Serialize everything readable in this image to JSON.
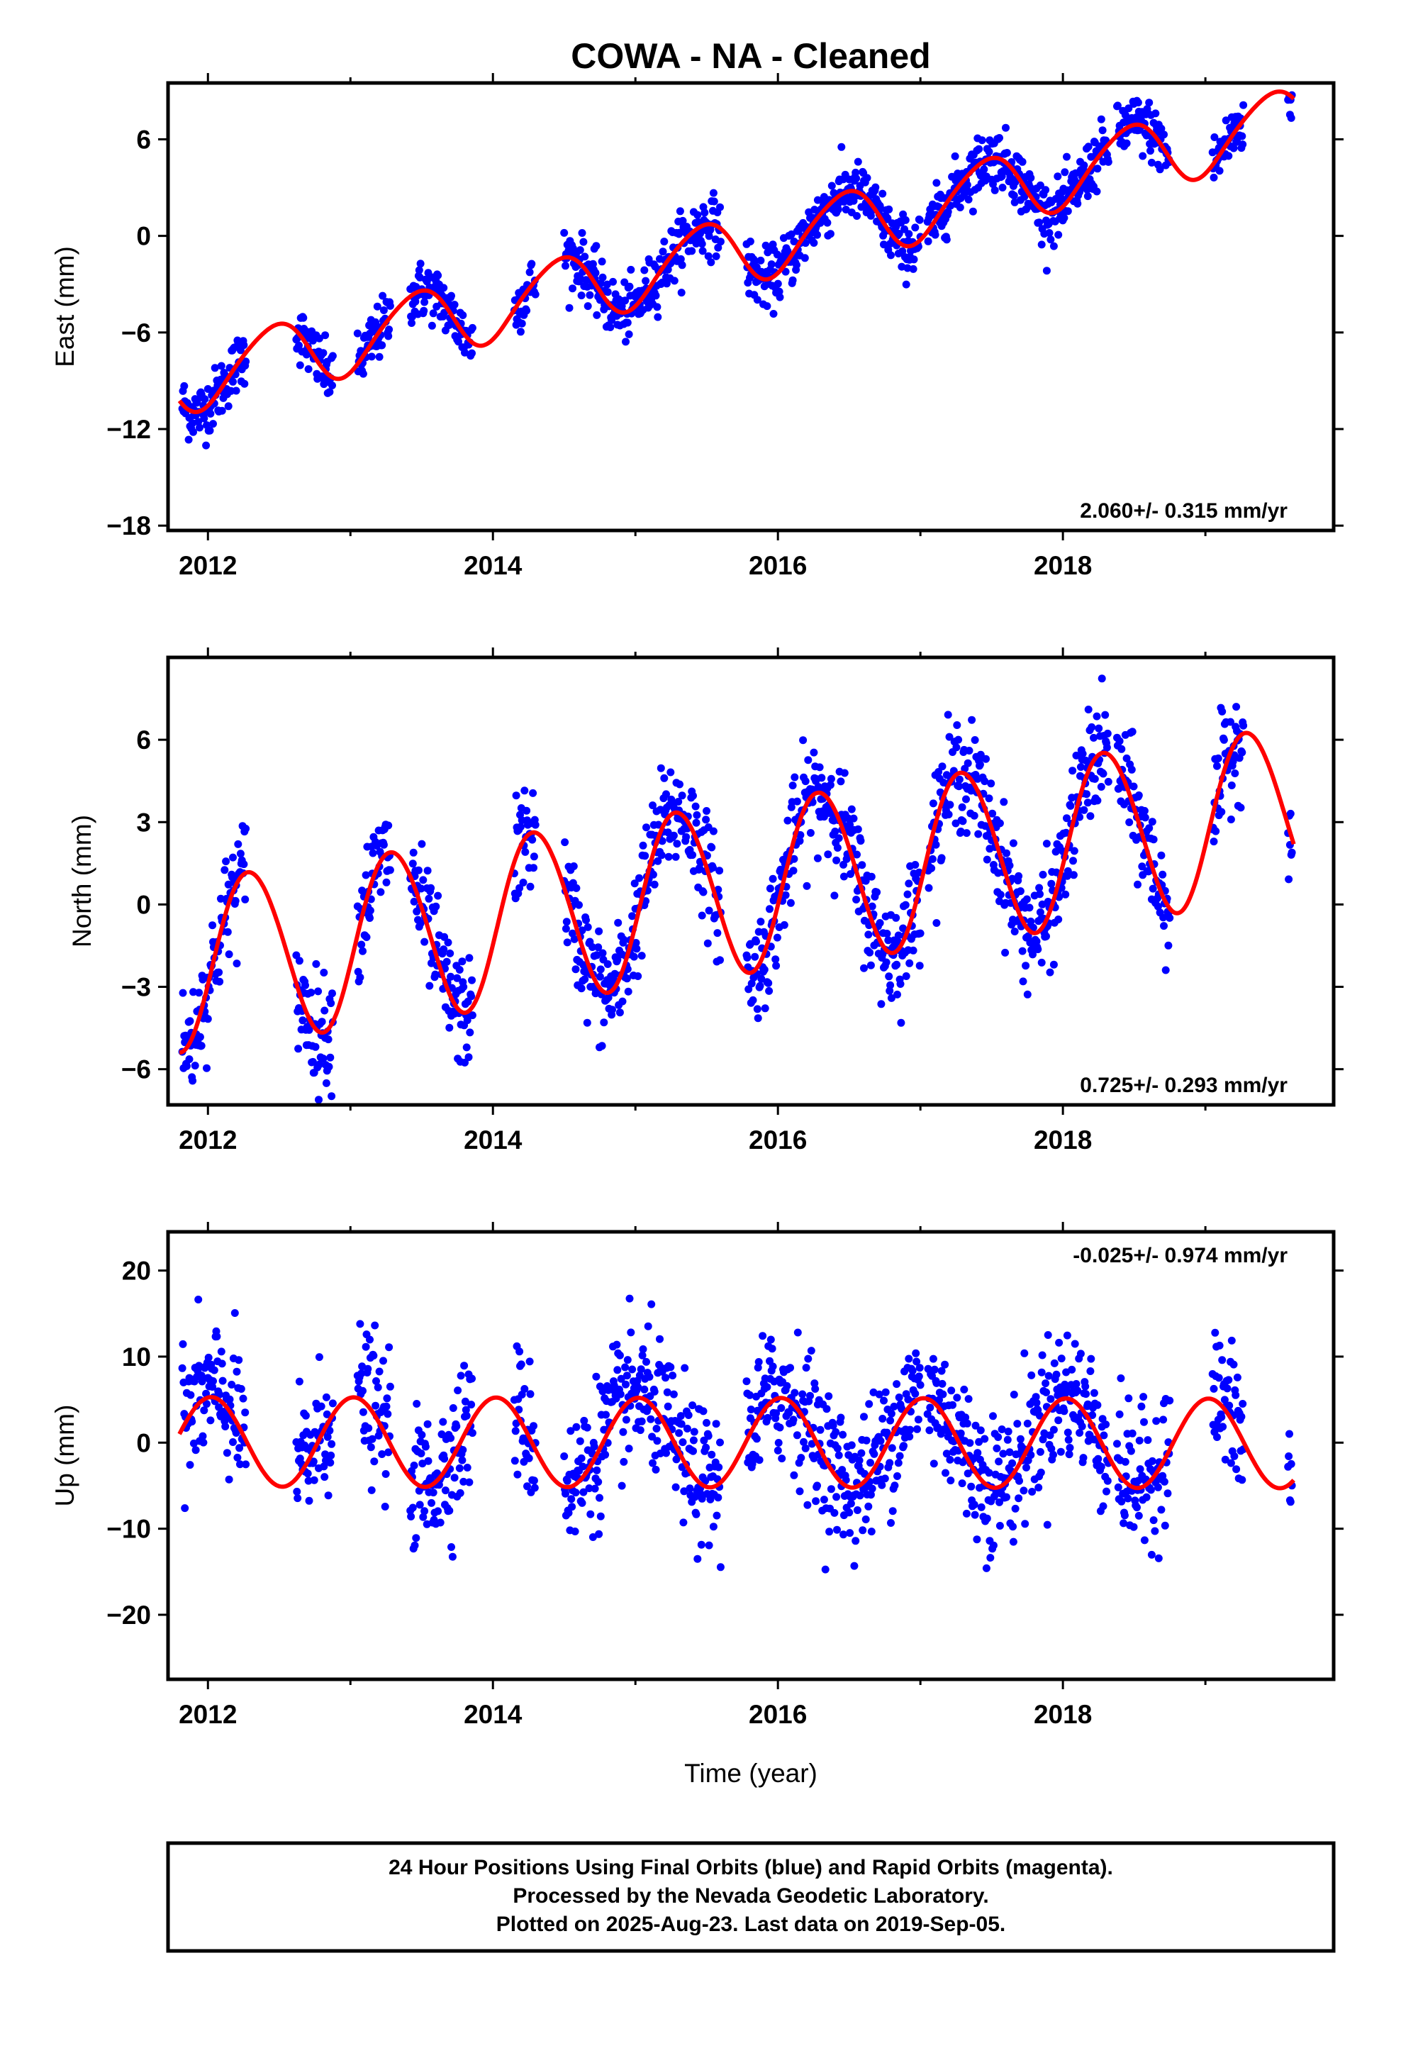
{
  "title": "COWA  - NA - Cleaned",
  "xlabel": "Time (year)",
  "footnote": [
    "24 Hour Positions Using Final Orbits (blue) and Rapid Orbits (magenta).",
    "Processed by the Nevada Geodetic Laboratory.",
    "Plotted on 2025-Aug-23. Last data on 2019-Sep-05."
  ],
  "colors": {
    "data": "#0000ff",
    "model": "#ff0000",
    "axes": "#000000"
  },
  "chart_data": [
    {
      "type": "scatter",
      "title": "",
      "xlabel": "",
      "ylabel": "East (mm)",
      "xlim": [
        2011.72,
        2019.9
      ],
      "ylim": [
        -18.3,
        9.5
      ],
      "xticks": [
        2012,
        2014,
        2016,
        2018
      ],
      "yticks": [
        -18,
        -12,
        -6,
        0,
        6
      ],
      "rate_label": "2.060+/- 0.315 mm/yr",
      "rate_position": "bottom-right",
      "model": {
        "rate": 2.06,
        "t0": 2015.7,
        "y0": -0.9,
        "amp_annual": 2.1,
        "phase_annual": -1.3,
        "amp_semi": 0.25,
        "phase_semi": 0.0
      },
      "data_segments": [
        [
          2011.82,
          2012.27
        ],
        [
          2012.62,
          2012.88
        ],
        [
          2013.05,
          2013.28
        ],
        [
          2013.42,
          2013.86
        ],
        [
          2014.15,
          2014.3
        ],
        [
          2014.5,
          2015.6
        ],
        [
          2015.78,
          2017.0
        ],
        [
          2017.05,
          2018.32
        ],
        [
          2018.38,
          2018.75
        ],
        [
          2019.05,
          2019.27
        ],
        [
          2019.58,
          2019.61
        ]
      ],
      "scatter_sd": 0.9,
      "data_offset": 0.0
    },
    {
      "type": "scatter",
      "title": "",
      "xlabel": "",
      "ylabel": "North (mm)",
      "xlim": [
        2011.72,
        2019.9
      ],
      "ylim": [
        -7.3,
        9.0
      ],
      "xticks": [
        2012,
        2014,
        2016,
        2018
      ],
      "yticks": [
        -6,
        -3,
        0,
        3,
        6
      ],
      "rate_label": "0.725+/- 0.293 mm/yr",
      "rate_position": "bottom-right",
      "model": {
        "rate": 0.725,
        "t0": 2015.7,
        "y0": 0.62,
        "amp_annual": 3.1,
        "phase_annual": -0.28,
        "amp_semi": 0.15,
        "phase_semi": 0.0
      },
      "data_segments": [
        [
          2011.82,
          2012.27
        ],
        [
          2012.62,
          2012.88
        ],
        [
          2013.05,
          2013.28
        ],
        [
          2013.42,
          2013.86
        ],
        [
          2014.15,
          2014.3
        ],
        [
          2014.5,
          2015.6
        ],
        [
          2015.78,
          2017.0
        ],
        [
          2017.05,
          2018.32
        ],
        [
          2018.38,
          2018.75
        ],
        [
          2019.05,
          2019.27
        ],
        [
          2019.58,
          2019.61
        ]
      ],
      "scatter_sd": 1.0,
      "data_offset": 0.0
    },
    {
      "type": "scatter",
      "title": "",
      "xlabel": "Time (year)",
      "ylabel": "Up (mm)",
      "xlim": [
        2011.72,
        2019.9
      ],
      "ylim": [
        -27.5,
        24.5
      ],
      "xticks": [
        2012,
        2014,
        2016,
        2018
      ],
      "yticks": [
        -20,
        -10,
        0,
        10,
        20
      ],
      "rate_label": "-0.025+/- 0.974 mm/yr",
      "rate_position": "top-right",
      "model": {
        "rate": -0.025,
        "t0": 2015.7,
        "y0": 0.0,
        "amp_annual": 5.2,
        "phase_annual": 1.43,
        "amp_semi": 0.0,
        "phase_semi": 0.0
      },
      "data_segments": [
        [
          2011.82,
          2012.27
        ],
        [
          2012.62,
          2012.88
        ],
        [
          2013.05,
          2013.28
        ],
        [
          2013.42,
          2013.86
        ],
        [
          2014.15,
          2014.3
        ],
        [
          2014.5,
          2015.6
        ],
        [
          2015.78,
          2017.0
        ],
        [
          2017.05,
          2018.32
        ],
        [
          2018.38,
          2018.75
        ],
        [
          2019.05,
          2019.27
        ],
        [
          2019.58,
          2019.61
        ]
      ],
      "scatter_sd": 4.0,
      "data_offset": 0.5
    }
  ]
}
